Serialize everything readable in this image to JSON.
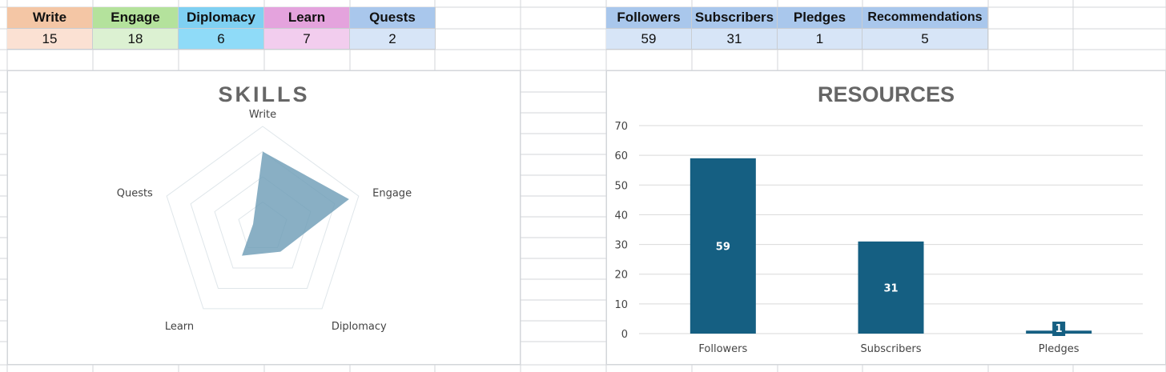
{
  "skills_table": {
    "headers": [
      {
        "label": "Write",
        "color": "#f4c6a5"
      },
      {
        "label": "Engage",
        "color": "#b4e29c"
      },
      {
        "label": "Diplomacy",
        "color": "#7fd0f2"
      },
      {
        "label": "Learn",
        "color": "#e4a3dd"
      },
      {
        "label": "Quests",
        "color": "#a9c7ec"
      }
    ],
    "values": [
      {
        "value": "15",
        "color": "#fbe1d3"
      },
      {
        "value": "18",
        "color": "#dcf1d2"
      },
      {
        "value": "6",
        "color": "#8fdbf8"
      },
      {
        "value": "7",
        "color": "#f2cdee"
      },
      {
        "value": "2",
        "color": "#d7e5f7"
      }
    ]
  },
  "resources_table": {
    "headers": [
      "Followers",
      "Subscribers",
      "Pledges",
      "Recommendations"
    ],
    "values": [
      "59",
      "31",
      "1",
      "5"
    ],
    "header_color": "#a9c7ec",
    "value_color": "#d7e5f7"
  },
  "charts": {
    "skills": {
      "title": "SKILLS",
      "chart_data": {
        "type": "radar",
        "categories": [
          "Write",
          "Engage",
          "Diplomacy",
          "Learn",
          "Quests"
        ],
        "values": [
          15,
          18,
          6,
          7,
          2
        ],
        "rmax": 20,
        "rings": [
          5,
          10,
          15,
          20
        ],
        "fill_color": "#6f9db7"
      }
    },
    "resources": {
      "title": "RESOURCES",
      "chart_data": {
        "type": "bar",
        "categories": [
          "Followers",
          "Subscribers",
          "Pledges"
        ],
        "values": [
          59,
          31,
          1
        ],
        "ylim": [
          0,
          70
        ],
        "yticks": [
          0,
          10,
          20,
          30,
          40,
          50,
          60,
          70
        ],
        "bar_color": "#155f82",
        "grid": true
      }
    }
  }
}
